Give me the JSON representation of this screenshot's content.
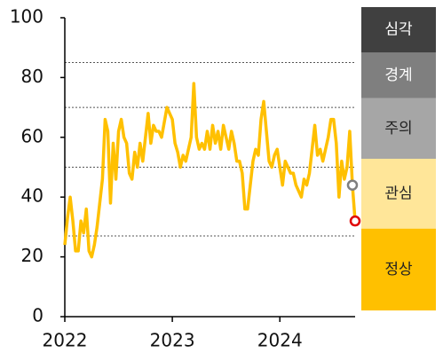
{
  "chart_data": {
    "type": "line",
    "x": [
      2022,
      2022.025,
      2022.05,
      2022.075,
      2022.1,
      2022.125,
      2022.15,
      2022.175,
      2022.2,
      2022.225,
      2022.25,
      2022.275,
      2022.3,
      2022.325,
      2022.35,
      2022.375,
      2022.4,
      2022.425,
      2022.45,
      2022.475,
      2022.5,
      2022.525,
      2022.55,
      2022.575,
      2022.6,
      2022.625,
      2022.65,
      2022.675,
      2022.7,
      2022.725,
      2022.75,
      2022.775,
      2022.8,
      2022.825,
      2022.85,
      2022.875,
      2022.9,
      2022.925,
      2022.95,
      2022.975,
      2023,
      2023.025,
      2023.05,
      2023.075,
      2023.1,
      2023.125,
      2023.15,
      2023.175,
      2023.2,
      2023.225,
      2023.25,
      2023.275,
      2023.3,
      2023.325,
      2023.35,
      2023.375,
      2023.4,
      2023.425,
      2023.45,
      2023.475,
      2023.5,
      2023.525,
      2023.55,
      2023.575,
      2023.6,
      2023.625,
      2023.65,
      2023.675,
      2023.7,
      2023.725,
      2023.75,
      2023.775,
      2023.8,
      2023.825,
      2023.85,
      2023.875,
      2023.9,
      2023.925,
      2023.95,
      2023.975,
      2024,
      2024.025,
      2024.05,
      2024.075,
      2024.1,
      2024.125,
      2024.15,
      2024.175,
      2024.2,
      2024.225,
      2024.25,
      2024.275,
      2024.3,
      2024.325,
      2024.35,
      2024.375,
      2024.4,
      2024.425,
      2024.45,
      2024.475,
      2024.5,
      2024.525,
      2024.55,
      2024.575,
      2024.6,
      2024.625,
      2024.65,
      2024.675,
      2024.7
    ],
    "series": [
      {
        "color": "#ffc000",
        "values": [
          24,
          33,
          40,
          32,
          22,
          22,
          32,
          28,
          36,
          22,
          20,
          24,
          30,
          38,
          46,
          66,
          62,
          38,
          58,
          46,
          62,
          66,
          60,
          58,
          48,
          46,
          55,
          50,
          58,
          52,
          60,
          68,
          58,
          64,
          62,
          62,
          60,
          65,
          70,
          68,
          66,
          58,
          55,
          50,
          54,
          52,
          56,
          60,
          78,
          60,
          56,
          58,
          56,
          62,
          56,
          64,
          58,
          62,
          56,
          64,
          60,
          56,
          62,
          58,
          52,
          52,
          48,
          36,
          36,
          44,
          52,
          56,
          54,
          66,
          72,
          62,
          52,
          50,
          54,
          56,
          50,
          44,
          52,
          50,
          48,
          48,
          44,
          42,
          40,
          46,
          44,
          48,
          56,
          64,
          54,
          56,
          52,
          56,
          60,
          66,
          66,
          58,
          40,
          52,
          46,
          50,
          62,
          44,
          32
        ]
      }
    ],
    "points": [
      {
        "x": 2024.675,
        "y": 44,
        "color": "#7f7f7f"
      },
      {
        "x": 2024.7,
        "y": 32,
        "color": "#e00000"
      }
    ],
    "xlim": [
      2022,
      2024.7
    ],
    "xticks": [
      2022,
      2023,
      2024
    ],
    "ylim": [
      0,
      100
    ],
    "yticks": [
      0,
      20,
      40,
      60,
      80,
      100
    ],
    "levels": [
      {
        "label": "정상",
        "from": 0,
        "to": 27,
        "color": "#ffc000",
        "text_color": "#222222"
      },
      {
        "label": "관심",
        "from": 27,
        "to": 50,
        "color": "#ffe699",
        "text_color": "#222222"
      },
      {
        "label": "주의",
        "from": 50,
        "to": 70,
        "color": "#a6a6a6",
        "text_color": "#222222"
      },
      {
        "label": "경계",
        "from": 70,
        "to": 85,
        "color": "#7f7f7f",
        "text_color": "#ffffff"
      },
      {
        "label": "심각",
        "from": 85,
        "to": 100,
        "color": "#404040",
        "text_color": "#ffffff"
      }
    ]
  }
}
